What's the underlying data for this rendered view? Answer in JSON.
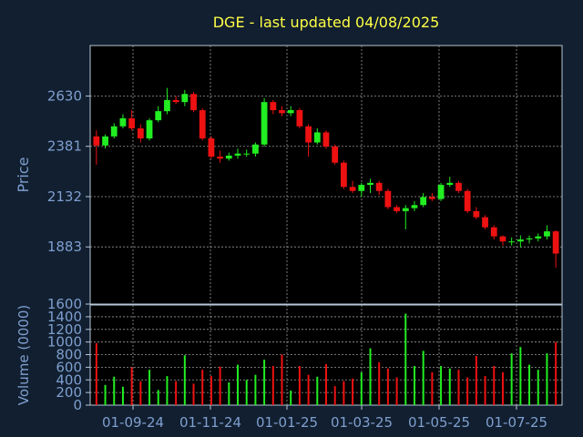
{
  "chart_data": {
    "type": "candlestick",
    "title": "DGE - last updated 04/08/2025",
    "price_panel": {
      "ylabel": "Price",
      "ylim": [
        1600,
        2880
      ],
      "y_ticks": [
        1600,
        1883,
        2132,
        2381,
        2630
      ]
    },
    "volume_panel": {
      "ylabel": "Volume (0000)",
      "ylim": [
        0,
        1500
      ],
      "y_ticks": [
        0,
        200,
        400,
        600,
        800,
        1000,
        1200,
        1400
      ]
    },
    "x_tick_labels": [
      "01-09-24",
      "01-11-24",
      "01-01-25",
      "01-03-25",
      "01-05-25",
      "01-07-25"
    ],
    "grid": true,
    "colors": {
      "background": "#111f30",
      "plot_background": "#000000",
      "grid": "#9a9a9a",
      "title": "#ffff44",
      "label": "#7f9fcf",
      "up": "#22ee22",
      "down": "#ee1111",
      "axis": "#b8c8d8"
    },
    "price_series": {
      "dates": [
        "2024-08-05",
        "2024-08-12",
        "2024-08-19",
        "2024-08-26",
        "2024-09-02",
        "2024-09-09",
        "2024-09-16",
        "2024-09-23",
        "2024-09-30",
        "2024-10-07",
        "2024-10-14",
        "2024-10-21",
        "2024-10-28",
        "2024-11-04",
        "2024-11-11",
        "2024-11-18",
        "2024-11-25",
        "2024-12-02",
        "2024-12-09",
        "2024-12-16",
        "2024-12-23",
        "2024-12-30",
        "2025-01-06",
        "2025-01-13",
        "2025-01-20",
        "2025-01-27",
        "2025-02-03",
        "2025-02-10",
        "2025-02-17",
        "2025-02-24",
        "2025-03-03",
        "2025-03-10",
        "2025-03-17",
        "2025-03-24",
        "2025-03-31",
        "2025-04-07",
        "2025-04-14",
        "2025-04-21",
        "2025-04-28",
        "2025-05-05",
        "2025-05-12",
        "2025-05-19",
        "2025-05-26",
        "2025-06-02",
        "2025-06-09",
        "2025-06-16",
        "2025-06-23",
        "2025-06-30",
        "2025-07-07",
        "2025-07-14",
        "2025-07-21",
        "2025-07-28",
        "2025-08-04"
      ],
      "open": [
        2430,
        2385,
        2430,
        2480,
        2520,
        2470,
        2420,
        2510,
        2555,
        2610,
        2600,
        2640,
        2560,
        2420,
        2330,
        2320,
        2335,
        2345,
        2345,
        2390,
        2600,
        2560,
        2545,
        2560,
        2480,
        2400,
        2450,
        2380,
        2300,
        2180,
        2160,
        2190,
        2200,
        2160,
        2080,
        2060,
        2075,
        2090,
        2130,
        2120,
        2190,
        2200,
        2160,
        2060,
        2030,
        1980,
        1935,
        1910,
        1910,
        1920,
        1925,
        1935,
        1960
      ],
      "close": [
        2385,
        2430,
        2480,
        2520,
        2470,
        2420,
        2510,
        2555,
        2610,
        2600,
        2640,
        2560,
        2420,
        2330,
        2320,
        2335,
        2345,
        2345,
        2390,
        2600,
        2560,
        2545,
        2560,
        2480,
        2400,
        2450,
        2380,
        2300,
        2180,
        2160,
        2190,
        2200,
        2160,
        2080,
        2060,
        2075,
        2090,
        2130,
        2120,
        2190,
        2200,
        2160,
        2060,
        2030,
        1980,
        1935,
        1910,
        1910,
        1920,
        1925,
        1935,
        1960,
        1850
      ],
      "high": [
        2460,
        2440,
        2495,
        2540,
        2560,
        2490,
        2520,
        2580,
        2670,
        2630,
        2660,
        2650,
        2570,
        2430,
        2360,
        2350,
        2370,
        2365,
        2400,
        2620,
        2610,
        2580,
        2580,
        2570,
        2490,
        2470,
        2460,
        2390,
        2310,
        2210,
        2200,
        2220,
        2210,
        2170,
        2090,
        2090,
        2110,
        2150,
        2150,
        2200,
        2230,
        2210,
        2170,
        2080,
        2040,
        1990,
        1940,
        1930,
        1940,
        1940,
        1950,
        1990,
        1965
      ],
      "low": [
        2290,
        2370,
        2420,
        2470,
        2460,
        2400,
        2410,
        2500,
        2540,
        2590,
        2580,
        2550,
        2410,
        2320,
        2300,
        2310,
        2320,
        2330,
        2330,
        2380,
        2540,
        2530,
        2530,
        2470,
        2330,
        2390,
        2370,
        2290,
        2170,
        2150,
        2130,
        2150,
        2140,
        2070,
        2050,
        1970,
        2060,
        2080,
        2110,
        2110,
        2180,
        2150,
        2050,
        2020,
        1970,
        1920,
        1890,
        1890,
        1880,
        1900,
        1910,
        1920,
        1780
      ]
    },
    "volume_series": {
      "values": [
        980,
        320,
        450,
        290,
        600,
        380,
        560,
        240,
        460,
        380,
        790,
        340,
        560,
        460,
        610,
        360,
        640,
        400,
        480,
        720,
        620,
        800,
        230,
        620,
        480,
        450,
        650,
        300,
        380,
        420,
        520,
        900,
        680,
        580,
        440,
        1450,
        620,
        860,
        520,
        620,
        580,
        560,
        440,
        780,
        460,
        620,
        520,
        820,
        920,
        640,
        560,
        820,
        1000
      ],
      "up": [
        false,
        true,
        true,
        true,
        false,
        false,
        true,
        true,
        true,
        false,
        true,
        false,
        false,
        false,
        false,
        true,
        true,
        true,
        true,
        true,
        false,
        false,
        true,
        false,
        false,
        true,
        false,
        false,
        false,
        false,
        true,
        true,
        false,
        false,
        false,
        true,
        true,
        true,
        false,
        true,
        true,
        false,
        false,
        false,
        false,
        false,
        false,
        true,
        true,
        true,
        true,
        true,
        false
      ]
    }
  }
}
